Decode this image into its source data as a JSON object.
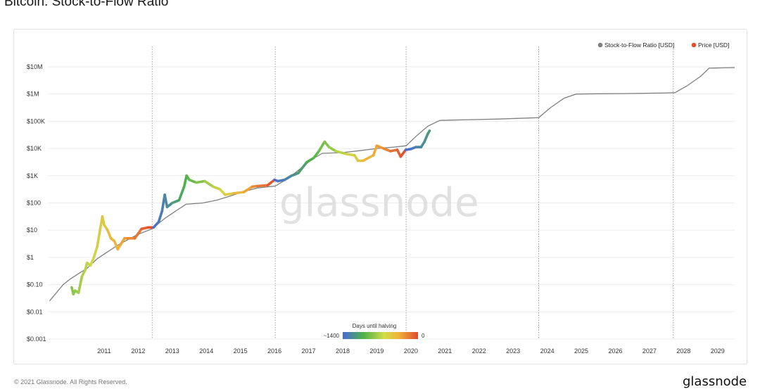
{
  "page": {
    "title": "Bitcoin: Stock-to-Flow Ratio",
    "footer_left": "© 2021 Glassnode. All Rights Reserved.",
    "footer_logo": "glassnode",
    "watermark": "glassnode"
  },
  "colors": {
    "s2f_line": "#808080",
    "price_gradient": [
      "#4a6ad8",
      "#4fb34a",
      "#cfd84a",
      "#f0b83a",
      "#e04a30"
    ],
    "grid": "#ececec",
    "halving_line": "#888888"
  },
  "chart_data": {
    "type": "line",
    "title": "Bitcoin: Stock-to-Flow Ratio",
    "xlabel": "",
    "ylabel": "",
    "y_scale": "log",
    "xlim": [
      2009.85,
      2030.0
    ],
    "ylim_exp": [
      -3,
      7.8
    ],
    "x_ticks": [
      "2011",
      "2012",
      "2013",
      "2014",
      "2015",
      "2016",
      "2017",
      "2018",
      "2019",
      "2020",
      "2021",
      "2022",
      "2023",
      "2024",
      "2025",
      "2026",
      "2027",
      "2028",
      "2029"
    ],
    "y_ticks": [
      {
        "label": "$0.001",
        "exp": -3
      },
      {
        "label": "$0.01",
        "exp": -2
      },
      {
        "label": "$0.10",
        "exp": -1
      },
      {
        "label": "$1",
        "exp": 0
      },
      {
        "label": "$10",
        "exp": 1
      },
      {
        "label": "$100",
        "exp": 2
      },
      {
        "label": "$1K",
        "exp": 3
      },
      {
        "label": "$10K",
        "exp": 4
      },
      {
        "label": "$100K",
        "exp": 5
      },
      {
        "label": "$1M",
        "exp": 6
      },
      {
        "label": "$10M",
        "exp": 7
      }
    ],
    "halvings": [
      2012.91,
      2016.52,
      2020.36,
      2024.25,
      2028.2
    ],
    "legend": {
      "placement": "top-right",
      "items": [
        {
          "label": "Stock-to-Flow Ratio [USD]",
          "color": "#808080"
        },
        {
          "label": "Price [USD]",
          "color": "#e0502f"
        }
      ]
    },
    "colorbar": {
      "title": "Days until halving",
      "min_label": "~1400",
      "max_label": "0"
    },
    "series": [
      {
        "name": "Stock-to-Flow Ratio [USD]",
        "points": [
          [
            2009.9,
            -1.6
          ],
          [
            2010.1,
            -1.3
          ],
          [
            2010.3,
            -1.0
          ],
          [
            2010.5,
            -0.8
          ],
          [
            2010.75,
            -0.6
          ],
          [
            2011.0,
            -0.4
          ],
          [
            2011.3,
            -0.05
          ],
          [
            2011.6,
            0.2
          ],
          [
            2011.9,
            0.45
          ],
          [
            2012.2,
            0.65
          ],
          [
            2012.5,
            0.85
          ],
          [
            2012.91,
            1.05
          ],
          [
            2013.0,
            1.15
          ],
          [
            2013.3,
            1.45
          ],
          [
            2013.6,
            1.7
          ],
          [
            2013.9,
            1.95
          ],
          [
            2014.4,
            2.0
          ],
          [
            2014.8,
            2.1
          ],
          [
            2015.2,
            2.25
          ],
          [
            2015.6,
            2.42
          ],
          [
            2016.0,
            2.55
          ],
          [
            2016.52,
            2.62
          ],
          [
            2016.9,
            2.9
          ],
          [
            2017.2,
            3.2
          ],
          [
            2017.6,
            3.6
          ],
          [
            2017.9,
            3.82
          ],
          [
            2018.5,
            3.85
          ],
          [
            2019.0,
            3.92
          ],
          [
            2019.5,
            4.0
          ],
          [
            2020.0,
            4.05
          ],
          [
            2020.36,
            4.1
          ],
          [
            2020.7,
            4.5
          ],
          [
            2021.0,
            4.82
          ],
          [
            2021.35,
            5.03
          ],
          [
            2022.0,
            5.05
          ],
          [
            2023.0,
            5.08
          ],
          [
            2024.0,
            5.12
          ],
          [
            2024.25,
            5.13
          ],
          [
            2024.6,
            5.5
          ],
          [
            2025.0,
            5.85
          ],
          [
            2025.35,
            6.0
          ],
          [
            2026.0,
            6.01
          ],
          [
            2027.0,
            6.02
          ],
          [
            2028.0,
            6.04
          ],
          [
            2028.25,
            6.05
          ],
          [
            2028.6,
            6.3
          ],
          [
            2029.0,
            6.65
          ],
          [
            2029.25,
            6.95
          ],
          [
            2029.6,
            6.96
          ],
          [
            2030.0,
            6.97
          ]
        ]
      },
      {
        "name": "Price [USD]",
        "points": [
          [
            2010.55,
            -1.1
          ],
          [
            2010.6,
            -1.35
          ],
          [
            2010.65,
            -1.22
          ],
          [
            2010.75,
            -1.3
          ],
          [
            2010.85,
            -0.7
          ],
          [
            2010.95,
            -0.45
          ],
          [
            2011.0,
            -0.2
          ],
          [
            2011.1,
            -0.3
          ],
          [
            2011.2,
            0.0
          ],
          [
            2011.3,
            0.4
          ],
          [
            2011.38,
            1.0
          ],
          [
            2011.45,
            1.5
          ],
          [
            2011.5,
            1.2
          ],
          [
            2011.6,
            1.0
          ],
          [
            2011.7,
            0.7
          ],
          [
            2011.8,
            0.6
          ],
          [
            2011.9,
            0.3
          ],
          [
            2012.0,
            0.5
          ],
          [
            2012.1,
            0.7
          ],
          [
            2012.2,
            0.7
          ],
          [
            2012.4,
            0.7
          ],
          [
            2012.6,
            1.05
          ],
          [
            2012.8,
            1.1
          ],
          [
            2012.95,
            1.1
          ],
          [
            2013.1,
            1.3
          ],
          [
            2013.2,
            1.7
          ],
          [
            2013.28,
            2.3
          ],
          [
            2013.35,
            1.85
          ],
          [
            2013.5,
            2.0
          ],
          [
            2013.7,
            2.1
          ],
          [
            2013.85,
            2.6
          ],
          [
            2013.92,
            3.0
          ],
          [
            2014.0,
            2.85
          ],
          [
            2014.2,
            2.75
          ],
          [
            2014.45,
            2.8
          ],
          [
            2014.7,
            2.6
          ],
          [
            2014.9,
            2.5
          ],
          [
            2015.05,
            2.3
          ],
          [
            2015.3,
            2.35
          ],
          [
            2015.6,
            2.4
          ],
          [
            2015.85,
            2.6
          ],
          [
            2016.0,
            2.62
          ],
          [
            2016.3,
            2.65
          ],
          [
            2016.5,
            2.85
          ],
          [
            2016.6,
            2.8
          ],
          [
            2016.8,
            2.85
          ],
          [
            2017.0,
            3.0
          ],
          [
            2017.2,
            3.1
          ],
          [
            2017.45,
            3.5
          ],
          [
            2017.65,
            3.65
          ],
          [
            2017.8,
            3.9
          ],
          [
            2017.97,
            4.25
          ],
          [
            2018.1,
            4.05
          ],
          [
            2018.3,
            3.9
          ],
          [
            2018.6,
            3.8
          ],
          [
            2018.85,
            3.75
          ],
          [
            2018.95,
            3.55
          ],
          [
            2019.1,
            3.55
          ],
          [
            2019.4,
            3.75
          ],
          [
            2019.5,
            4.1
          ],
          [
            2019.7,
            4.0
          ],
          [
            2019.9,
            3.9
          ],
          [
            2020.1,
            3.95
          ],
          [
            2020.2,
            3.7
          ],
          [
            2020.35,
            3.95
          ],
          [
            2020.5,
            3.98
          ],
          [
            2020.65,
            4.05
          ],
          [
            2020.8,
            4.05
          ],
          [
            2020.9,
            4.25
          ],
          [
            2021.0,
            4.55
          ],
          [
            2021.05,
            4.65
          ]
        ]
      }
    ]
  }
}
